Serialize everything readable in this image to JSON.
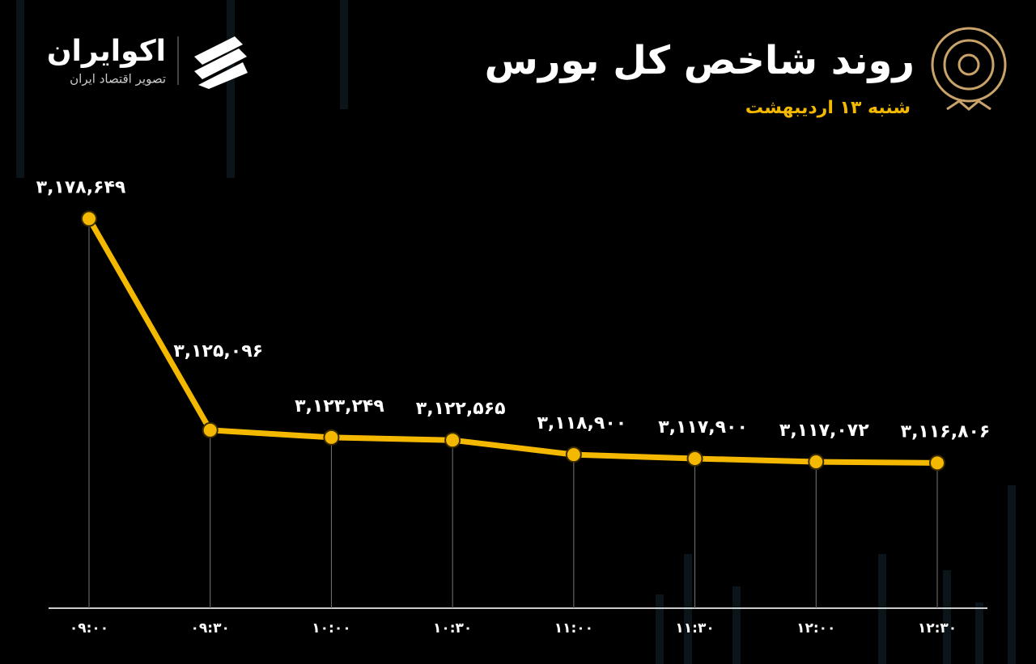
{
  "header": {
    "brand": "اکوایران",
    "tagline": "تصویر اقتصاد ایران"
  },
  "chart_data": {
    "type": "line",
    "title": "روند شاخص کل بورس",
    "subtitle": "شنبه ۱۳ اردیبهشت",
    "categories": [
      "۰۹:۰۰",
      "۰۹:۳۰",
      "۱۰:۰۰",
      "۱۰:۳۰",
      "۱۱:۰۰",
      "۱۱:۳۰",
      "۱۲:۰۰",
      "۱۲:۳۰"
    ],
    "series": [
      {
        "color": "#f5b800",
        "values": [
          3178649,
          3125096,
          3123249,
          3122565,
          3118900,
          3117900,
          3117072,
          3116806
        ],
        "value_labels": [
          "۳,۱۷۸,۶۴۹",
          "۳,۱۲۵,۰۹۶",
          "۳,۱۲۳,۲۴۹",
          "۳,۱۲۲,۵۶۵",
          "۳,۱۱۸,۹۰۰",
          "۳,۱۱۷,۹۰۰",
          "۳,۱۱۷,۰۷۲",
          "۳,۱۱۶,۸۰۶"
        ]
      }
    ],
    "ylim": [
      3080000,
      3190000
    ]
  }
}
